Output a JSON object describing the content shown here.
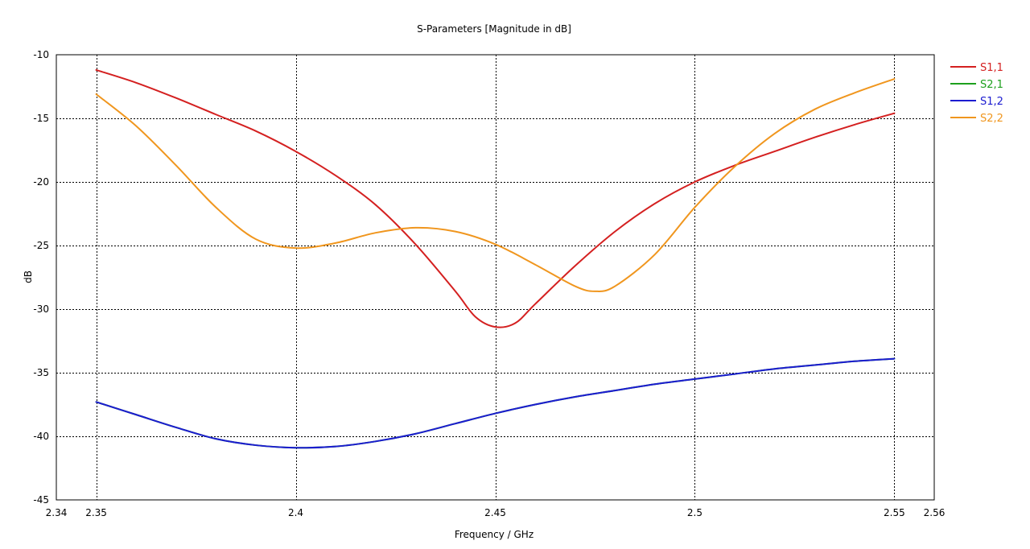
{
  "chart_data": {
    "type": "line",
    "title": "S-Parameters [Magnitude in dB]",
    "xlabel": "Frequency / GHz",
    "ylabel": "dB",
    "xlim": [
      2.34,
      2.56
    ],
    "ylim": [
      -45,
      -10
    ],
    "xticks": [
      {
        "value": 2.34,
        "label": "2.34"
      },
      {
        "value": 2.35,
        "label": "2.35"
      },
      {
        "value": 2.4,
        "label": "2.4"
      },
      {
        "value": 2.45,
        "label": "2.45"
      },
      {
        "value": 2.5,
        "label": "2.5"
      },
      {
        "value": 2.55,
        "label": "2.55"
      },
      {
        "value": 2.56,
        "label": "2.56"
      }
    ],
    "xgrid": [
      2.35,
      2.4,
      2.45,
      2.5,
      2.55
    ],
    "yticks": [
      {
        "value": -10,
        "label": "-10"
      },
      {
        "value": -15,
        "label": "-15"
      },
      {
        "value": -20,
        "label": "-20"
      },
      {
        "value": -25,
        "label": "-25"
      },
      {
        "value": -30,
        "label": "-30"
      },
      {
        "value": -35,
        "label": "-35"
      },
      {
        "value": -40,
        "label": "-40"
      },
      {
        "value": -45,
        "label": "-45"
      }
    ],
    "grid": true,
    "legend_position": "right-top",
    "series": [
      {
        "name": "S1,1",
        "color": "#d42020",
        "x": [
          2.35,
          2.36,
          2.37,
          2.38,
          2.39,
          2.4,
          2.41,
          2.42,
          2.43,
          2.44,
          2.445,
          2.45,
          2.455,
          2.46,
          2.47,
          2.48,
          2.49,
          2.5,
          2.51,
          2.52,
          2.53,
          2.54,
          2.55
        ],
        "y": [
          -11.2,
          -12.2,
          -13.4,
          -14.7,
          -16.0,
          -17.6,
          -19.5,
          -21.8,
          -24.9,
          -28.6,
          -30.6,
          -31.4,
          -31.1,
          -29.6,
          -26.6,
          -23.9,
          -21.7,
          -20.0,
          -18.7,
          -17.6,
          -16.5,
          -15.5,
          -14.6
        ]
      },
      {
        "name": "S2,1",
        "color": "#1ea01e",
        "x": [
          2.35,
          2.36,
          2.37,
          2.38,
          2.39,
          2.4,
          2.41,
          2.42,
          2.43,
          2.44,
          2.45,
          2.46,
          2.47,
          2.48,
          2.49,
          2.5,
          2.51,
          2.52,
          2.53,
          2.54,
          2.55
        ],
        "y": [
          -37.3,
          -38.3,
          -39.3,
          -40.2,
          -40.7,
          -40.9,
          -40.8,
          -40.4,
          -39.8,
          -39.0,
          -38.2,
          -37.5,
          -36.9,
          -36.4,
          -35.9,
          -35.5,
          -35.1,
          -34.7,
          -34.4,
          -34.1,
          -33.9
        ]
      },
      {
        "name": "S1,2",
        "color": "#1c1cd0",
        "x": [
          2.35,
          2.36,
          2.37,
          2.38,
          2.39,
          2.4,
          2.41,
          2.42,
          2.43,
          2.44,
          2.45,
          2.46,
          2.47,
          2.48,
          2.49,
          2.5,
          2.51,
          2.52,
          2.53,
          2.54,
          2.55
        ],
        "y": [
          -37.3,
          -38.3,
          -39.3,
          -40.2,
          -40.7,
          -40.9,
          -40.8,
          -40.4,
          -39.8,
          -39.0,
          -38.2,
          -37.5,
          -36.9,
          -36.4,
          -35.9,
          -35.5,
          -35.1,
          -34.7,
          -34.4,
          -34.1,
          -33.9
        ]
      },
      {
        "name": "S2,2",
        "color": "#f0961e",
        "x": [
          2.35,
          2.36,
          2.37,
          2.38,
          2.39,
          2.4,
          2.41,
          2.42,
          2.43,
          2.44,
          2.45,
          2.46,
          2.47,
          2.475,
          2.48,
          2.49,
          2.5,
          2.51,
          2.52,
          2.53,
          2.54,
          2.55
        ],
        "y": [
          -13.1,
          -15.6,
          -18.7,
          -22.0,
          -24.5,
          -25.2,
          -24.8,
          -24.0,
          -23.6,
          -23.9,
          -24.9,
          -26.5,
          -28.2,
          -28.6,
          -28.2,
          -25.7,
          -22.0,
          -18.8,
          -16.2,
          -14.3,
          -13.0,
          -11.9
        ]
      }
    ]
  }
}
